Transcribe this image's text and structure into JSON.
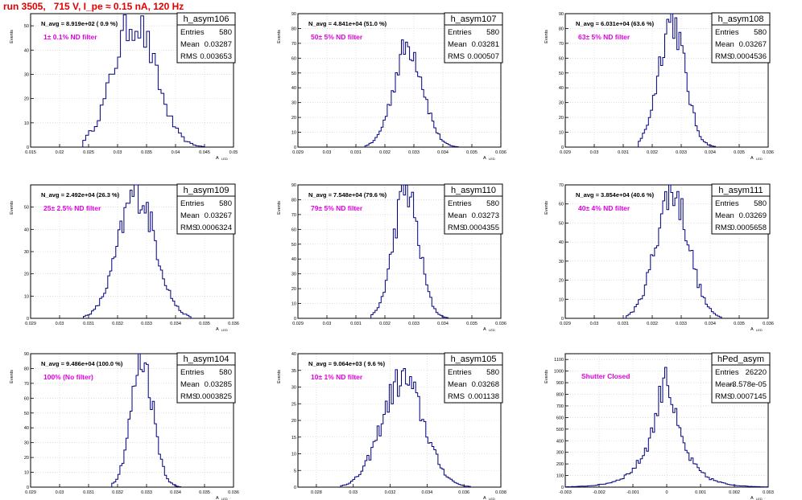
{
  "title": "run 3505,   715 V, I_pe ≈ 0.15 nA, 120 Hz",
  "y_axis_label": "Events",
  "x_axis_label": "A",
  "x_axis_label_sub": "LED",
  "stat_labels": [
    "Entries",
    "Mean",
    "RMS"
  ],
  "colors": {
    "title": "#e00000",
    "hist": "#000080",
    "annotation": "#e000e0",
    "grid": "#cccccc"
  },
  "chart_data": [
    {
      "type": "histogram",
      "hist_name": "h_asym106",
      "n_avg": "N_avg = 8.919e+02 ( 0.9 %)",
      "filter": "1± 0.1% ND filter",
      "stats": {
        "entries": "580",
        "mean": "0.03287",
        "rms": "0.003653"
      },
      "xlim": [
        0.015,
        0.05
      ],
      "ylim": [
        0,
        55
      ],
      "xticks": [
        "0.015",
        "0.02",
        "0.025",
        "0.03",
        "0.035",
        "0.04",
        "0.045",
        "0.05"
      ],
      "yticks": [
        "0",
        "10",
        "20",
        "30",
        "40",
        "50"
      ],
      "mean": 0.03287,
      "rms": 0.003653,
      "peak": 53,
      "bins": 70,
      "x_range": [
        0.024,
        0.045
      ]
    },
    {
      "type": "histogram",
      "hist_name": "h_asym107",
      "n_avg": "N_avg = 4.841e+04 (51.0 %)",
      "filter": "50± 5% ND filter",
      "stats": {
        "entries": "580",
        "mean": "0.03281",
        "rms": "0.000507"
      },
      "xlim": [
        0.029,
        0.036
      ],
      "ylim": [
        0,
        90
      ],
      "xticks": [
        "0.029",
        "0.03",
        "0.031",
        "0.032",
        "0.033",
        "0.034",
        "0.035",
        "0.036"
      ],
      "yticks": [
        "0",
        "10",
        "20",
        "30",
        "40",
        "50",
        "60",
        "70",
        "80",
        "90"
      ],
      "mean": 0.03281,
      "rms": 0.000507,
      "peak": 70,
      "bins": 100,
      "x_range": [
        0.0313,
        0.0345
      ]
    },
    {
      "type": "histogram",
      "hist_name": "h_asym108",
      "n_avg": "N_avg = 6.031e+04 (63.6 %)",
      "filter": "63± 5% ND filter",
      "stats": {
        "entries": "580",
        "mean": "0.03267",
        "rms": "0.0004536"
      },
      "xlim": [
        0.029,
        0.036
      ],
      "ylim": [
        0,
        90
      ],
      "xticks": [
        "0.029",
        "0.03",
        "0.031",
        "0.032",
        "0.033",
        "0.034",
        "0.035",
        "0.036"
      ],
      "yticks": [
        "0",
        "10",
        "20",
        "30",
        "40",
        "50",
        "60",
        "70",
        "80",
        "90"
      ],
      "mean": 0.03267,
      "rms": 0.0004536,
      "peak": 88,
      "bins": 100,
      "x_range": [
        0.0315,
        0.0342
      ]
    },
    {
      "type": "histogram",
      "hist_name": "h_asym109",
      "n_avg": "N_avg = 2.492e+04 (26.3 %)",
      "filter": "25± 2.5% ND filter",
      "stats": {
        "entries": "580",
        "mean": "0.03267",
        "rms": "0.0006324"
      },
      "xlim": [
        0.029,
        0.036
      ],
      "ylim": [
        0,
        60
      ],
      "xticks": [
        "0.029",
        "0.03",
        "0.031",
        "0.032",
        "0.033",
        "0.034",
        "0.035",
        "0.036"
      ],
      "yticks": [
        "0",
        "10",
        "20",
        "30",
        "40",
        "50"
      ],
      "mean": 0.03267,
      "rms": 0.0006324,
      "peak": 58,
      "bins": 100,
      "x_range": [
        0.0308,
        0.0345
      ]
    },
    {
      "type": "histogram",
      "hist_name": "h_asym110",
      "n_avg": "N_avg = 7.548e+04 (79.6 %)",
      "filter": "79± 5% ND filter",
      "stats": {
        "entries": "580",
        "mean": "0.03273",
        "rms": "0.0004355"
      },
      "xlim": [
        0.029,
        0.036
      ],
      "ylim": [
        0,
        90
      ],
      "xticks": [
        "0.029",
        "0.03",
        "0.031",
        "0.032",
        "0.033",
        "0.034",
        "0.035",
        "0.036"
      ],
      "yticks": [
        "0",
        "10",
        "20",
        "30",
        "40",
        "50",
        "60",
        "70",
        "80",
        "90"
      ],
      "mean": 0.03273,
      "rms": 0.0004355,
      "peak": 88,
      "bins": 100,
      "x_range": [
        0.0315,
        0.0342
      ]
    },
    {
      "type": "histogram",
      "hist_name": "h_asym111",
      "n_avg": "N_avg = 3.854e+04 (40.6 %)",
      "filter": "40± 4% ND filter",
      "stats": {
        "entries": "580",
        "mean": "0.03269",
        "rms": "0.0005658"
      },
      "xlim": [
        0.029,
        0.036
      ],
      "ylim": [
        0,
        70
      ],
      "xticks": [
        "0.029",
        "0.03",
        "0.031",
        "0.032",
        "0.033",
        "0.034",
        "0.035",
        "0.036"
      ],
      "yticks": [
        "0",
        "10",
        "20",
        "30",
        "40",
        "50",
        "60",
        "70"
      ],
      "mean": 0.03269,
      "rms": 0.0005658,
      "peak": 68,
      "bins": 100,
      "x_range": [
        0.0311,
        0.0344
      ]
    },
    {
      "type": "histogram",
      "hist_name": "h_asym104",
      "n_avg": "N_avg = 9.486e+04 (100.0 %)",
      "filter": "100% (No filter)",
      "stats": {
        "entries": "580",
        "mean": "0.03285",
        "rms": "0.0003825"
      },
      "xlim": [
        0.029,
        0.036
      ],
      "ylim": [
        0,
        90
      ],
      "xticks": [
        "0.029",
        "0.03",
        "0.031",
        "0.032",
        "0.033",
        "0.034",
        "0.035",
        "0.036"
      ],
      "yticks": [
        "0",
        "10",
        "20",
        "30",
        "40",
        "50",
        "60",
        "70",
        "80",
        "90"
      ],
      "mean": 0.03285,
      "rms": 0.0003825,
      "peak": 88,
      "bins": 100,
      "x_range": [
        0.0318,
        0.0342
      ]
    },
    {
      "type": "histogram",
      "hist_name": "h_asym105",
      "n_avg": "N_avg = 9.064e+03 ( 9.6 %)",
      "filter": "10± 1% ND filter",
      "stats": {
        "entries": "580",
        "mean": "0.03268",
        "rms": "0.001138"
      },
      "xlim": [
        0.027,
        0.038
      ],
      "ylim": [
        0,
        40
      ],
      "xticks": [
        "0.028",
        "0.03",
        "0.032",
        "0.034",
        "0.036",
        "0.038"
      ],
      "yticks": [
        "0",
        "5",
        "10",
        "15",
        "20",
        "25",
        "30",
        "35",
        "40"
      ],
      "mean": 0.03268,
      "rms": 0.001138,
      "peak": 33,
      "bins": 100,
      "x_range": [
        0.0293,
        0.0363
      ]
    },
    {
      "type": "histogram",
      "hist_name": "hPed_asym",
      "n_avg": "",
      "filter": "Shutter Closed",
      "stats": {
        "entries": "26220",
        "mean": "-3.578e-05",
        "rms": "0.0007145"
      },
      "xlim": [
        -0.003,
        0.003
      ],
      "ylim": [
        0,
        1150
      ],
      "xticks": [
        "-0.003",
        "-0.002",
        "-0.001",
        "0",
        "0.001",
        "0.002",
        "0.003"
      ],
      "yticks": [
        "0",
        "100",
        "200",
        "300",
        "400",
        "500",
        "600",
        "700",
        "800",
        "900",
        "1000",
        "1100"
      ],
      "mean": -3.578e-05,
      "rms": 0.0007145,
      "peak": 1110,
      "bins": 100,
      "x_range": [
        -0.003,
        0.003
      ],
      "ped": true
    }
  ]
}
